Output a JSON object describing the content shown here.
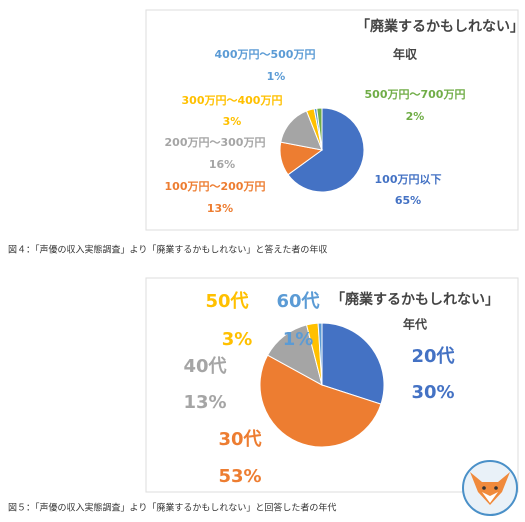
{
  "chart_data": [
    {
      "type": "pie",
      "title": "「廃業するかもしれない」",
      "subtitle": "年収",
      "categories": [
        "100万円以下",
        "100万円～200万円",
        "200万円～300万円",
        "300万円～400万円",
        "400万円～500万円",
        "500万円～700万円"
      ],
      "values": [
        65,
        13,
        16,
        3,
        1,
        2
      ],
      "value_labels": [
        "65%",
        "13%",
        "16%",
        "3%",
        "1%",
        "2%"
      ],
      "colors": [
        "#4472c4",
        "#ed7d31",
        "#a5a5a5",
        "#ffc000",
        "#5b9bd5",
        "#70ad47"
      ],
      "caption": "図４：「声優の収入実態調査」より「廃業するかもしれない」と答えた者の年収"
    },
    {
      "type": "pie",
      "title": "「廃業するかもしれない」",
      "subtitle": "年代",
      "categories": [
        "20代",
        "30代",
        "40代",
        "50代",
        "60代"
      ],
      "values": [
        30,
        53,
        13,
        3,
        1
      ],
      "value_labels": [
        "30%",
        "53%",
        "13%",
        "3%",
        "1%"
      ],
      "colors": [
        "#4472c4",
        "#ed7d31",
        "#a5a5a5",
        "#ffc000",
        "#5b9bd5"
      ],
      "caption": "図５：「声優の収入実態調査」より「廃業するかもしれない」と回答した者の年代"
    }
  ]
}
